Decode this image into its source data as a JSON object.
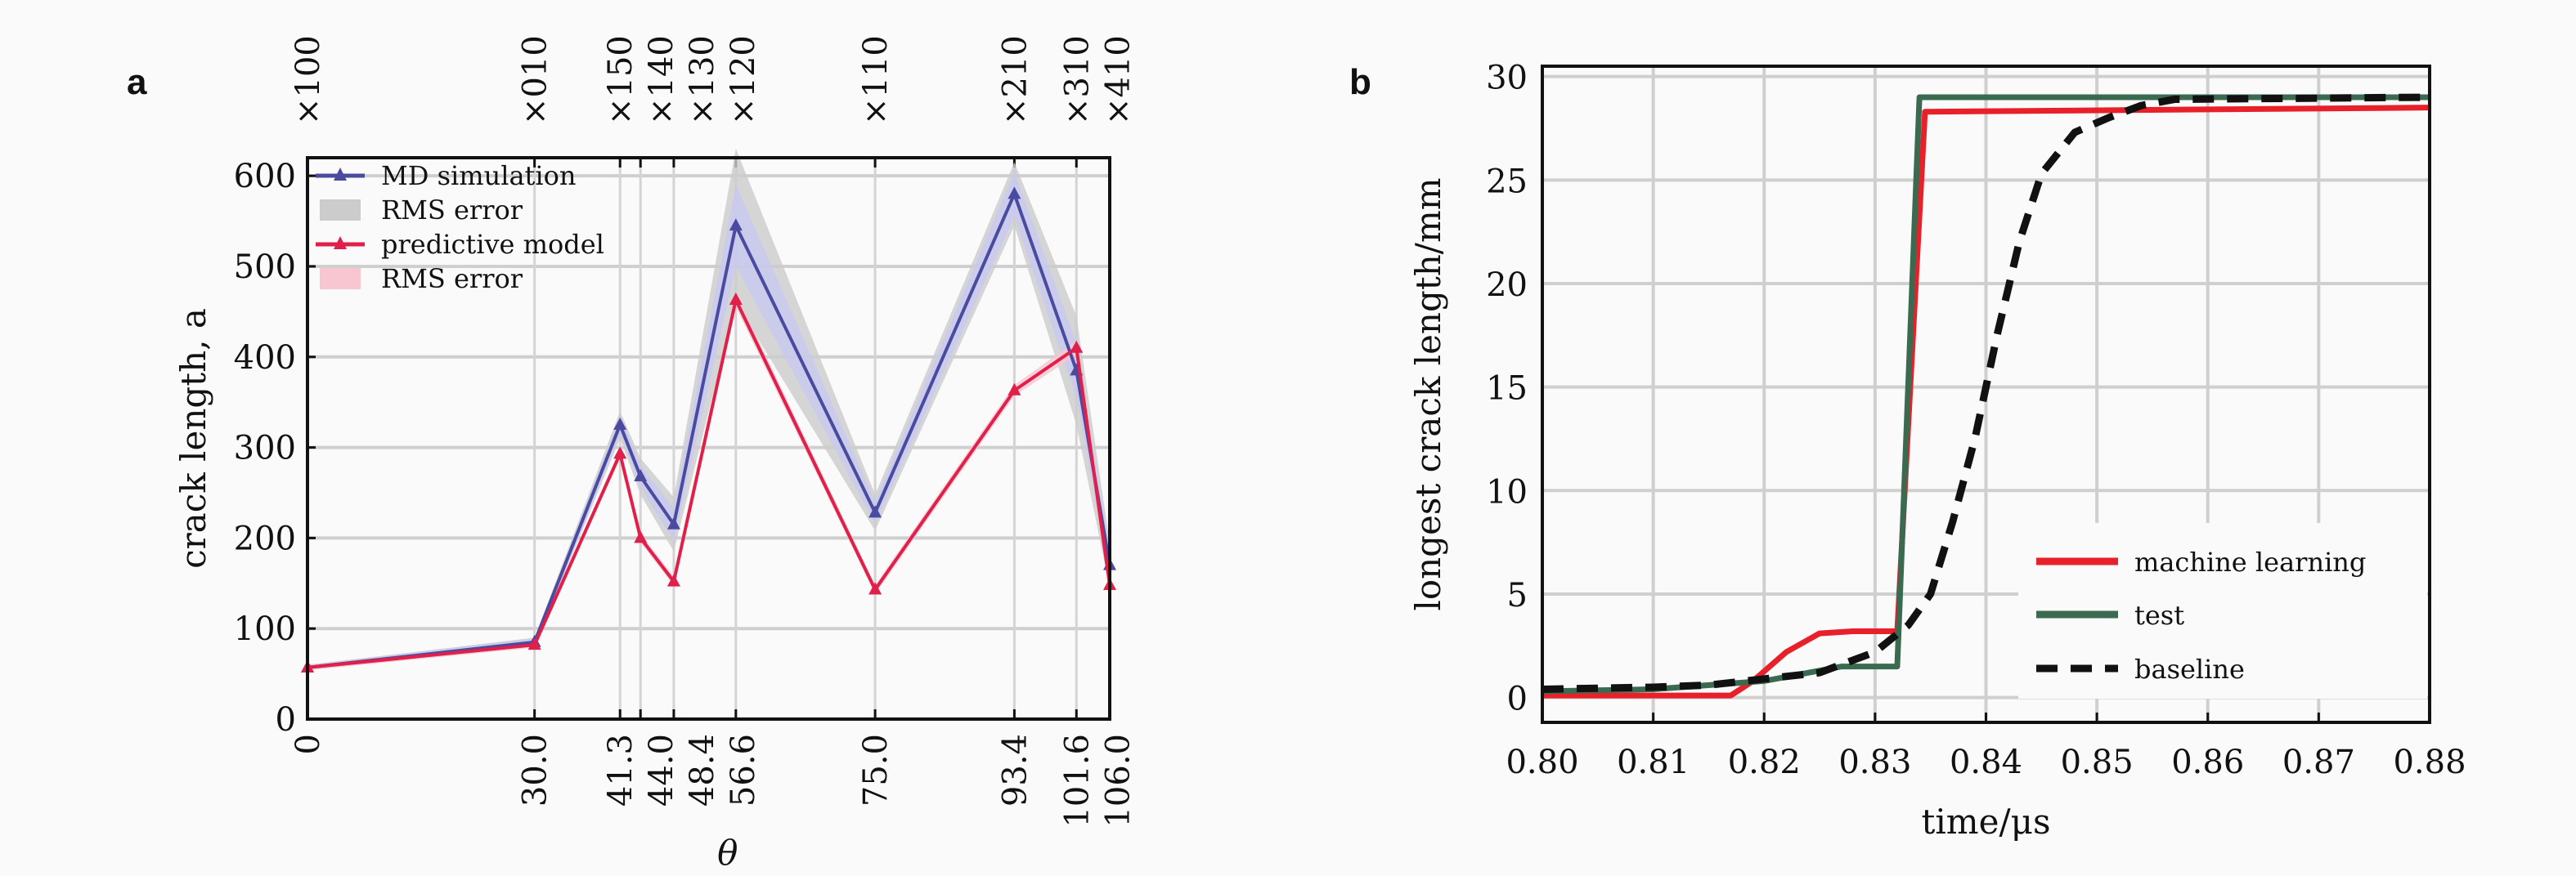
{
  "chart_data": [
    {
      "panel_label": "a",
      "type": "line",
      "xlabel": "θ",
      "ylabel": "crack length, a",
      "x": [
        0,
        30.0,
        41.3,
        44.0,
        48.4,
        56.6,
        75.0,
        93.4,
        101.6,
        106.0
      ],
      "xtick_labels": [
        "0",
        "30.0",
        "41.3",
        "44.0",
        "48.4",
        "56.6",
        "75.0",
        "93.4",
        "101.6",
        "106.0"
      ],
      "top_tick_labels": [
        "×100",
        "×010",
        "×150",
        "×140",
        "×130",
        "×120",
        "×110",
        "×210",
        "×310",
        "×410"
      ],
      "xlim": [
        0,
        106
      ],
      "ylim": [
        0,
        620
      ],
      "yticks": [
        0,
        100,
        200,
        300,
        400,
        500,
        600
      ],
      "grid": true,
      "legend_placement": "top-left",
      "series": [
        {
          "name": "MD simulation",
          "color": "#4a4aa0",
          "marker": "triangle",
          "values": [
            57,
            85,
            325,
            268,
            215,
            545,
            228,
            580,
            385,
            170
          ],
          "band_name": "RMS error",
          "band_color": "#cccccc",
          "band_halfwidth": [
            3,
            5,
            15,
            20,
            30,
            85,
            20,
            35,
            60,
            25
          ]
        },
        {
          "name": "predictive model",
          "color": "#e0204a",
          "marker": "triangle",
          "values": [
            57,
            82,
            293,
            200,
            152,
            463,
            143,
            363,
            410,
            148
          ],
          "band_name": "RMS error",
          "band_color": "#f7c6d0",
          "band_halfwidth": [
            3,
            3,
            5,
            5,
            5,
            8,
            5,
            6,
            8,
            5
          ]
        }
      ],
      "md_inner_band_color": "#c8c8f0",
      "md_inner_band_halfwidth": [
        3,
        4,
        10,
        12,
        18,
        45,
        12,
        25,
        30,
        12
      ]
    },
    {
      "panel_label": "b",
      "type": "line",
      "xlabel": "time/μs",
      "ylabel": "longest crack length/mm",
      "xlim": [
        0.8,
        0.88
      ],
      "ylim": [
        -1.2,
        30.5
      ],
      "xticks": [
        "0.80",
        "0.81",
        "0.82",
        "0.83",
        "0.84",
        "0.85",
        "0.86",
        "0.87",
        "0.88"
      ],
      "yticks": [
        0,
        5,
        10,
        15,
        20,
        25,
        30
      ],
      "grid": true,
      "legend_placement": "bottom-right",
      "series": [
        {
          "name": "machine learning",
          "color": "#e8202a",
          "style": "solid",
          "points": [
            [
              0.8,
              0.1
            ],
            [
              0.817,
              0.1
            ],
            [
              0.819,
              0.8
            ],
            [
              0.822,
              2.2
            ],
            [
              0.825,
              3.1
            ],
            [
              0.828,
              3.2
            ],
            [
              0.832,
              3.2
            ],
            [
              0.8345,
              28.3
            ],
            [
              0.88,
              28.5
            ]
          ]
        },
        {
          "name": "test",
          "color": "#3a6a50",
          "style": "solid",
          "points": [
            [
              0.8,
              0.3
            ],
            [
              0.81,
              0.4
            ],
            [
              0.82,
              0.8
            ],
            [
              0.827,
              1.5
            ],
            [
              0.832,
              1.5
            ],
            [
              0.834,
              29.0
            ],
            [
              0.88,
              29.0
            ]
          ]
        },
        {
          "name": "baseline",
          "color": "#111111",
          "style": "dashed",
          "points": [
            [
              0.8,
              0.4
            ],
            [
              0.81,
              0.5
            ],
            [
              0.815,
              0.6
            ],
            [
              0.82,
              0.9
            ],
            [
              0.825,
              1.2
            ],
            [
              0.83,
              2.2
            ],
            [
              0.833,
              3.5
            ],
            [
              0.835,
              5.0
            ],
            [
              0.837,
              8.5
            ],
            [
              0.839,
              12.5
            ],
            [
              0.841,
              17.5
            ],
            [
              0.843,
              22.0
            ],
            [
              0.845,
              25.3
            ],
            [
              0.848,
              27.3
            ],
            [
              0.851,
              28.0
            ],
            [
              0.854,
              28.6
            ],
            [
              0.857,
              28.9
            ],
            [
              0.88,
              29.0
            ]
          ]
        }
      ]
    }
  ]
}
